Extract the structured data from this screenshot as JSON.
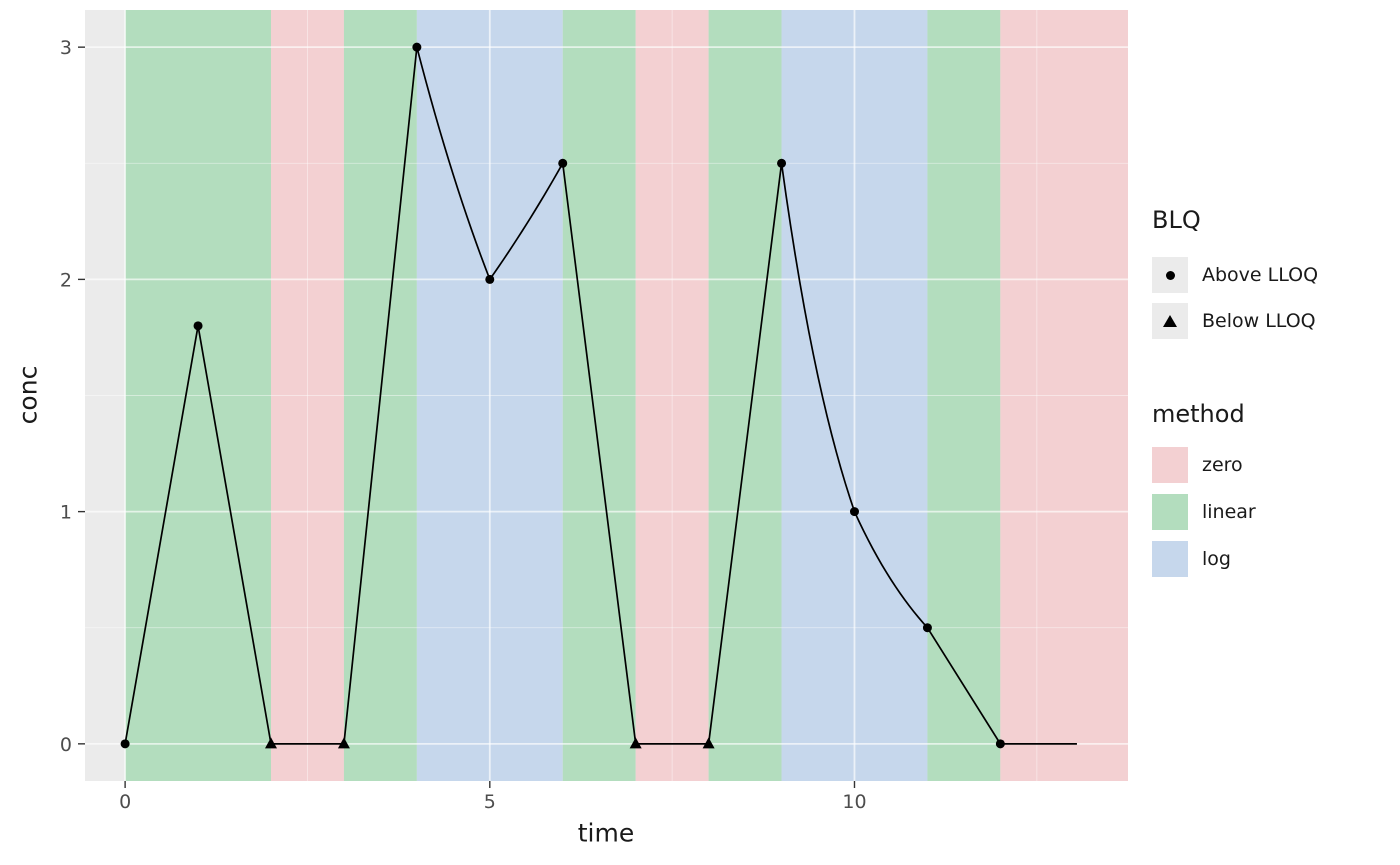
{
  "figure": {
    "background": "#FFFFFF",
    "panel_background": "#EBEBEB",
    "grid_major_color": "rgba(255,255,255,0.65)",
    "grid_minor_color": "rgba(255,255,255,0.45)",
    "tick_mark_color": "#333333",
    "tick_label_color": "#4D4D4D"
  },
  "chart_data": {
    "type": "line",
    "title": "",
    "xlabel": "time",
    "ylabel": "conc",
    "xlim": [
      -0.55,
      13.75
    ],
    "ylim": [
      -0.16,
      3.16
    ],
    "x_major_ticks": [
      0,
      5,
      10
    ],
    "x_minor_ticks": [
      2.5,
      7.5,
      12.5
    ],
    "y_major_ticks": [
      0,
      1,
      2,
      3
    ],
    "y_minor_ticks": [
      0.5,
      1.5,
      2.5
    ],
    "line_color": "#000000",
    "point_color": "#000000",
    "points": [
      {
        "x": 0,
        "y": 0,
        "blq": "Above LLOQ"
      },
      {
        "x": 1,
        "y": 1.8,
        "blq": "Above LLOQ"
      },
      {
        "x": 2,
        "y": 0,
        "blq": "Below LLOQ"
      },
      {
        "x": 3,
        "y": 0,
        "blq": "Below LLOQ"
      },
      {
        "x": 4,
        "y": 3,
        "blq": "Above LLOQ"
      },
      {
        "x": 5,
        "y": 2,
        "blq": "Above LLOQ"
      },
      {
        "x": 6,
        "y": 2.5,
        "blq": "Above LLOQ"
      },
      {
        "x": 7,
        "y": 0,
        "blq": "Below LLOQ"
      },
      {
        "x": 8,
        "y": 0,
        "blq": "Below LLOQ"
      },
      {
        "x": 9,
        "y": 2.5,
        "blq": "Above LLOQ"
      },
      {
        "x": 10,
        "y": 1,
        "blq": "Above LLOQ"
      },
      {
        "x": 11,
        "y": 0.5,
        "blq": "Above LLOQ"
      },
      {
        "x": 12,
        "y": 0,
        "blq": "Above LLOQ"
      }
    ],
    "line_tail_end_x": 13.05,
    "bands": [
      {
        "from": 0,
        "to": 2,
        "method": "linear"
      },
      {
        "from": 2,
        "to": 3,
        "method": "zero"
      },
      {
        "from": 3,
        "to": 4,
        "method": "linear"
      },
      {
        "from": 4,
        "to": 6,
        "method": "log"
      },
      {
        "from": 6,
        "to": 7,
        "method": "linear"
      },
      {
        "from": 7,
        "to": 8,
        "method": "zero"
      },
      {
        "from": 8,
        "to": 9,
        "method": "linear"
      },
      {
        "from": 9,
        "to": 11,
        "method": "log"
      },
      {
        "from": 11,
        "to": 12,
        "method": "linear"
      },
      {
        "from": 12,
        "to": 13.75,
        "method": "zero"
      }
    ],
    "method_colors": {
      "zero": "#F3D0D2",
      "linear": "#B3DDBE",
      "log": "#C6D7EC"
    }
  },
  "legend": {
    "blq": {
      "title": "BLQ",
      "items": [
        {
          "label": "Above LLOQ",
          "shape": "circle"
        },
        {
          "label": "Below LLOQ",
          "shape": "triangle"
        }
      ]
    },
    "method": {
      "title": "method",
      "items": [
        {
          "label": "zero"
        },
        {
          "label": "linear"
        },
        {
          "label": "log"
        }
      ]
    }
  }
}
